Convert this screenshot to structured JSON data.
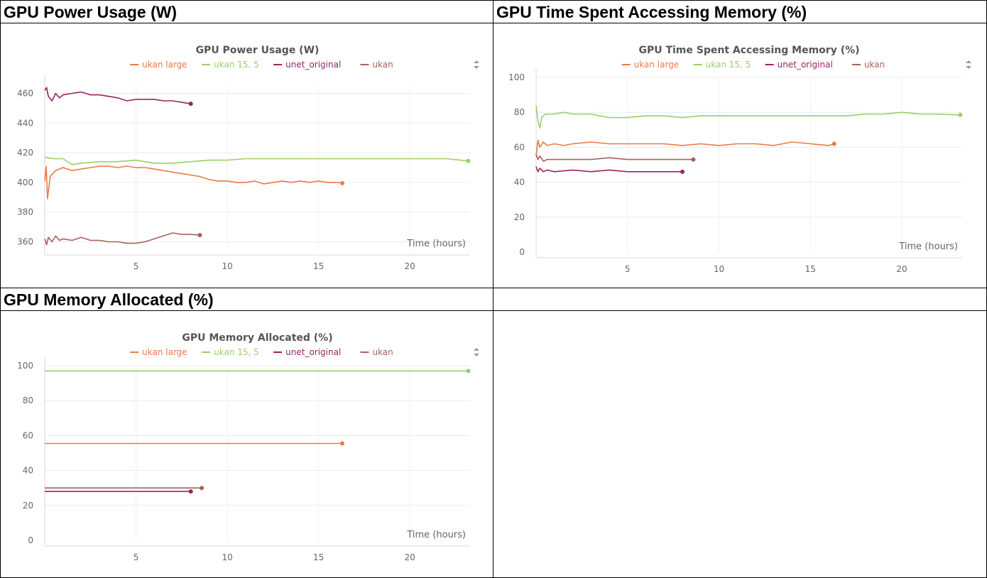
{
  "panels": [
    {
      "header": "GPU Power Usage (W)",
      "chart_data": {
        "type": "line",
        "title": "GPU Power Usage (W)",
        "xlabel": "Time (hours)",
        "ylabel": "",
        "xlim": [
          0,
          23.3
        ],
        "ylim": [
          355,
          466
        ],
        "xticks": [
          5,
          10,
          15,
          20
        ],
        "yticks": [
          360,
          380,
          400,
          420,
          440,
          460
        ],
        "grid": true,
        "legend": "top-center",
        "series": [
          {
            "name": "ukan large",
            "color": "#ec7a45",
            "x": [
              0,
              0.08,
              0.15,
              0.3,
              0.6,
              1.0,
              1.5,
              2.0,
              2.5,
              3.0,
              3.5,
              4.0,
              4.5,
              5.0,
              5.5,
              6.0,
              6.5,
              7.0,
              7.5,
              8.0,
              8.5,
              9.0,
              9.5,
              10.0,
              10.5,
              11.0,
              11.5,
              12.0,
              12.5,
              13.0,
              13.5,
              14.0,
              14.5,
              15.0,
              15.5,
              16.0,
              16.3
            ],
            "y": [
              401,
              411,
              389,
              404,
              408,
              410,
              408,
              409,
              410,
              411,
              411,
              410,
              411,
              410,
              410,
              409,
              408,
              407,
              406,
              405,
              404,
              402,
              401,
              401,
              400,
              400,
              401,
              399,
              400,
              401,
              400,
              401,
              400,
              401,
              400,
              400,
              399.5
            ]
          },
          {
            "name": "ukan 15, 5",
            "color": "#9acf6a",
            "x": [
              0,
              0.5,
              1.0,
              1.5,
              2.0,
              3.0,
              4.0,
              5.0,
              6.0,
              7.0,
              8.0,
              9.0,
              10.0,
              11.0,
              12.0,
              13.0,
              14.0,
              15.0,
              16.0,
              17.0,
              18.0,
              19.0,
              20.0,
              21.0,
              22.0,
              23.2
            ],
            "y": [
              417,
              416,
              416,
              412,
              413,
              414,
              414,
              415,
              413,
              413,
              414,
              415,
              415,
              416,
              416,
              416,
              416,
              416,
              416,
              416,
              416,
              416,
              416,
              416,
              416,
              414.5
            ]
          },
          {
            "name": "unet_original",
            "color": "#9b2360",
            "x": [
              0,
              0.1,
              0.2,
              0.4,
              0.6,
              0.8,
              1.0,
              1.5,
              2.0,
              2.5,
              3.0,
              3.5,
              4.0,
              4.5,
              5.0,
              5.5,
              6.0,
              6.5,
              7.0,
              7.5,
              8.0
            ],
            "y": [
              462,
              464,
              458,
              455,
              460,
              457,
              459,
              460,
              461,
              459,
              459,
              458,
              457,
              455,
              456,
              456,
              456,
              455,
              455,
              454,
              453
            ]
          },
          {
            "name": "ukan",
            "color": "#a6625a",
            "x": [
              0,
              0.1,
              0.2,
              0.4,
              0.6,
              0.8,
              1.0,
              1.5,
              2.0,
              2.5,
              3.0,
              3.5,
              4.0,
              4.5,
              5.0,
              5.5,
              6.0,
              6.5,
              7.0,
              7.5,
              8.0,
              8.5
            ],
            "y": [
              362,
              358,
              363,
              360,
              364,
              361,
              362,
              361,
              363,
              361,
              361,
              360,
              360,
              359,
              359,
              360,
              362,
              364,
              366,
              365,
              365,
              364.5
            ]
          }
        ]
      }
    },
    {
      "header": "GPU Time Spent Accessing Memory (%)",
      "chart_data": {
        "type": "line",
        "title": "GPU Time Spent Accessing Memory (%)",
        "xlabel": "Time (hours)",
        "ylabel": "",
        "xlim": [
          0,
          23.3
        ],
        "ylim": [
          0,
          100
        ],
        "xticks": [
          5,
          10,
          15,
          20
        ],
        "yticks": [
          0,
          20,
          40,
          60,
          80,
          100
        ],
        "grid": true,
        "legend": "top-center",
        "series": [
          {
            "name": "ukan large",
            "color": "#ec7a45",
            "x": [
              0,
              0.1,
              0.2,
              0.4,
              0.6,
              1.0,
              1.5,
              2.0,
              3.0,
              4.0,
              5.0,
              6.0,
              7.0,
              8.0,
              9.0,
              10.0,
              11.0,
              12.0,
              13.0,
              14.0,
              15.0,
              16.0,
              16.3
            ],
            "y": [
              55,
              64,
              60,
              63,
              61,
              62,
              61,
              62,
              63,
              62,
              62,
              62,
              62,
              61,
              62,
              61,
              62,
              62,
              61,
              63,
              62,
              61,
              62
            ]
          },
          {
            "name": "ukan 15, 5",
            "color": "#9acf6a",
            "x": [
              0,
              0.1,
              0.2,
              0.3,
              0.5,
              1.0,
              1.5,
              2.0,
              3.0,
              4.0,
              5.0,
              6.0,
              7.0,
              8.0,
              9.0,
              10.0,
              11.0,
              12.0,
              13.0,
              14.0,
              15.0,
              16.0,
              17.0,
              18.0,
              19.0,
              20.0,
              21.0,
              22.0,
              23.2
            ],
            "y": [
              84,
              75,
              71,
              77,
              79,
              79,
              80,
              79,
              79,
              77,
              77,
              78,
              78,
              77,
              78,
              78,
              78,
              78,
              78,
              78,
              78,
              78,
              78,
              79,
              79,
              80,
              79,
              79,
              78.5
            ]
          },
          {
            "name": "unet_original",
            "color": "#9b2360",
            "x": [
              0,
              0.1,
              0.2,
              0.4,
              0.6,
              1.0,
              2.0,
              3.0,
              4.0,
              5.0,
              6.0,
              7.0,
              8.0
            ],
            "y": [
              49,
              46,
              48,
              46,
              47,
              46,
              47,
              46,
              47,
              46,
              46,
              46,
              46
            ]
          },
          {
            "name": "ukan",
            "color": "#a6625a",
            "x": [
              0,
              0.1,
              0.2,
              0.4,
              0.6,
              1.0,
              2.0,
              3.0,
              4.0,
              5.0,
              6.0,
              7.0,
              8.0,
              8.6
            ],
            "y": [
              56,
              53,
              55,
              52,
              53,
              53,
              53,
              53,
              54,
              53,
              53,
              53,
              53,
              53
            ]
          }
        ]
      }
    },
    {
      "header": "GPU Memory Allocated (%)",
      "chart_data": {
        "type": "line",
        "title": "GPU Memory Allocated (%)",
        "xlabel": "Time (hours)",
        "ylabel": "",
        "xlim": [
          0,
          23.3
        ],
        "ylim": [
          0,
          100
        ],
        "xticks": [
          5,
          10,
          15,
          20
        ],
        "yticks": [
          0,
          20,
          40,
          60,
          80,
          100
        ],
        "grid": true,
        "legend": "top-center",
        "series": [
          {
            "name": "ukan large",
            "color": "#ec7a45",
            "x": [
              0,
              16.3
            ],
            "y": [
              55.5,
              55.5
            ]
          },
          {
            "name": "ukan 15, 5",
            "color": "#9acf6a",
            "x": [
              0,
              23.2
            ],
            "y": [
              97,
              97
            ]
          },
          {
            "name": "unet_original",
            "color": "#9b2360",
            "x": [
              0,
              8.0
            ],
            "y": [
              28,
              28
            ]
          },
          {
            "name": "ukan",
            "color": "#a6625a",
            "x": [
              0,
              8.6
            ],
            "y": [
              30,
              30
            ]
          }
        ]
      }
    },
    {
      "header": ""
    }
  ]
}
